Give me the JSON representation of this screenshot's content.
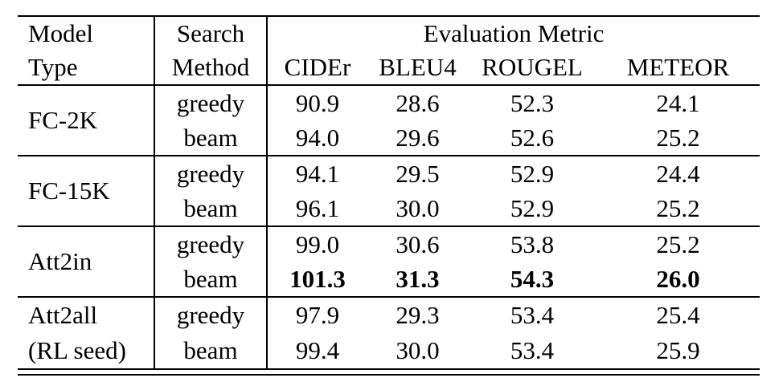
{
  "table": {
    "header": {
      "col1_line1": "Model",
      "col1_line2": "Type",
      "col2_line1": "Search",
      "col2_line2": "Method",
      "group_header": "Evaluation Metric",
      "metrics": [
        "CIDEr",
        "BLEU4",
        "ROUGEL",
        "METEOR"
      ]
    },
    "groups": [
      {
        "model_line1": "FC-2K",
        "model_line2": "",
        "rows": [
          {
            "search": "greedy",
            "values": [
              "90.9",
              "28.6",
              "52.3",
              "24.1"
            ],
            "bold": false
          },
          {
            "search": "beam",
            "values": [
              "94.0",
              "29.6",
              "52.6",
              "25.2"
            ],
            "bold": false
          }
        ]
      },
      {
        "model_line1": "FC-15K",
        "model_line2": "",
        "rows": [
          {
            "search": "greedy",
            "values": [
              "94.1",
              "29.5",
              "52.9",
              "24.4"
            ],
            "bold": false
          },
          {
            "search": "beam",
            "values": [
              "96.1",
              "30.0",
              "52.9",
              "25.2"
            ],
            "bold": false
          }
        ]
      },
      {
        "model_line1": "Att2in",
        "model_line2": "",
        "rows": [
          {
            "search": "greedy",
            "values": [
              "99.0",
              "30.6",
              "53.8",
              "25.2"
            ],
            "bold": false
          },
          {
            "search": "beam",
            "values": [
              "101.3",
              "31.3",
              "54.3",
              "26.0"
            ],
            "bold": true
          }
        ]
      },
      {
        "model_line1": "Att2all",
        "model_line2": "(RL seed)",
        "rows": [
          {
            "search": "greedy",
            "values": [
              "97.9",
              "29.3",
              "53.4",
              "25.4"
            ],
            "bold": false
          },
          {
            "search": "beam",
            "values": [
              "99.4",
              "30.0",
              "53.4",
              "25.9"
            ],
            "bold": false
          }
        ]
      }
    ],
    "colors": {
      "text": "#000000",
      "rules": "#000000",
      "background": "#ffffff"
    }
  },
  "chart_data": {
    "type": "table",
    "column_group_header": "Evaluation Metric",
    "columns": [
      "Model Type",
      "Search Method",
      "CIDEr",
      "BLEU4",
      "ROUGEL",
      "METEOR"
    ],
    "rows": [
      [
        "FC-2K",
        "greedy",
        90.9,
        28.6,
        52.3,
        24.1
      ],
      [
        "FC-2K",
        "beam",
        94.0,
        29.6,
        52.6,
        25.2
      ],
      [
        "FC-15K",
        "greedy",
        94.1,
        29.5,
        52.9,
        24.4
      ],
      [
        "FC-15K",
        "beam",
        96.1,
        30.0,
        52.9,
        25.2
      ],
      [
        "Att2in",
        "greedy",
        99.0,
        30.6,
        53.8,
        25.2
      ],
      [
        "Att2in",
        "beam",
        101.3,
        31.3,
        54.3,
        26.0
      ],
      [
        "Att2all (RL seed)",
        "greedy",
        97.9,
        29.3,
        53.4,
        25.4
      ],
      [
        "Att2all (RL seed)",
        "beam",
        99.4,
        30.0,
        53.4,
        25.9
      ]
    ],
    "bold_row_index": 5
  }
}
